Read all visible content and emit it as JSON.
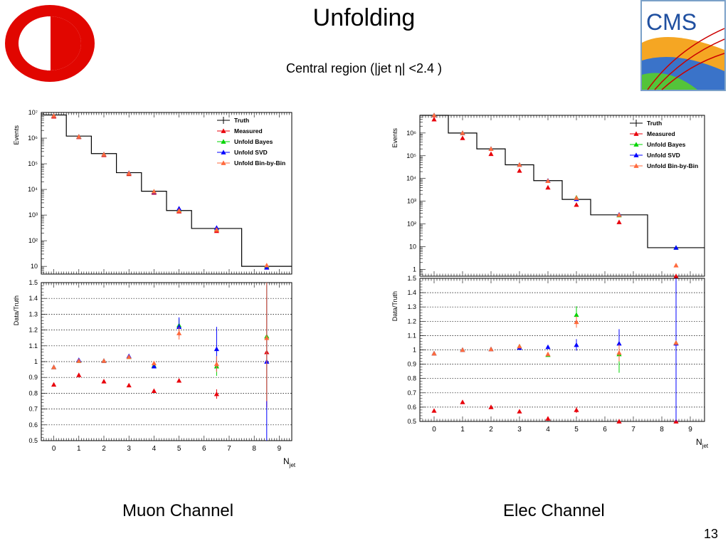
{
  "slide": {
    "title": "Unfolding",
    "subtitle": "Central region (|jet η| <2.4 )",
    "caption_left": "Muon Channel",
    "caption_right": "Elec Channel",
    "page_number": "13"
  },
  "logos": {
    "left": "university-logo",
    "right": "CMS"
  },
  "colors": {
    "Truth": "#000000",
    "Measured": "#e8000b",
    "Unfold Bayes": "#00d400",
    "Unfold SVD": "#0000ff",
    "Unfold Bin-by-Bin": "#ff6a3d"
  },
  "chart_data": [
    {
      "type": "scatter",
      "panel": "muon-top",
      "ylabel": "Events",
      "y_scale": "log",
      "ylim": [
        5,
        10000000
      ],
      "xlim": [
        -0.5,
        9.5
      ],
      "grid": false,
      "legend": "top-right",
      "y_tick_labels": [
        "10⁷",
        "10⁶",
        "10⁵",
        "10⁴",
        "10³",
        "10²",
        "10"
      ],
      "truth_bins": [
        [
          -0.5,
          0.5,
          8000000
        ],
        [
          0.5,
          1.5,
          1200000
        ],
        [
          1.5,
          2.5,
          250000
        ],
        [
          2.5,
          3.5,
          45000
        ],
        [
          3.5,
          4.5,
          8500
        ],
        [
          4.5,
          5.5,
          1500
        ],
        [
          5.5,
          7.5,
          300
        ],
        [
          7.5,
          9.5,
          10
        ]
      ],
      "series": [
        {
          "name": "Truth",
          "x": [],
          "y": []
        },
        {
          "name": "Measured",
          "x": [
            0,
            1,
            2,
            3,
            4,
            5,
            6.5,
            8.5
          ],
          "y": [
            7000000,
            1100000,
            220000,
            40000,
            7500,
            1400,
            240,
            9
          ]
        },
        {
          "name": "Unfold Bayes",
          "x": [
            0,
            1,
            2,
            3,
            4,
            5,
            6.5,
            8.5
          ],
          "y": [
            7500000,
            1150000,
            235000,
            43000,
            8200,
            1600,
            280,
            10
          ]
        },
        {
          "name": "Unfold SVD",
          "x": [
            0,
            1,
            2,
            3,
            4,
            5,
            6.5,
            8.5
          ],
          "y": [
            7500000,
            1150000,
            235000,
            44000,
            8000,
            1800,
            320,
            9
          ]
        },
        {
          "name": "Unfold Bin-by-Bin",
          "x": [
            0,
            1,
            2,
            3,
            4,
            5,
            6.5,
            8.5
          ],
          "y": [
            7500000,
            1150000,
            235000,
            43000,
            8300,
            1500,
            270,
            11
          ]
        }
      ]
    },
    {
      "type": "scatter",
      "panel": "muon-ratio",
      "ylabel": "Data/Truth",
      "xlabel": "N",
      "xlabel_sub": "jet",
      "ylim": [
        0.5,
        1.5
      ],
      "xlim": [
        -0.5,
        9.5
      ],
      "grid": true,
      "x_ticks": [
        0,
        1,
        2,
        3,
        4,
        5,
        6,
        7,
        8,
        9
      ],
      "y_ticks": [
        0.5,
        0.6,
        0.7,
        0.8,
        0.9,
        1,
        1.1,
        1.2,
        1.3,
        1.4,
        1.5
      ],
      "series": [
        {
          "name": "Measured",
          "x": [
            0,
            1,
            2,
            3,
            4,
            5,
            6.5,
            8.5
          ],
          "y": [
            0.855,
            0.915,
            0.875,
            0.85,
            0.815,
            0.88,
            0.795,
            1.06
          ],
          "err": [
            0,
            0,
            0,
            0,
            0,
            0,
            0.03,
            0.35
          ]
        },
        {
          "name": "Unfold Bayes",
          "x": [
            0,
            1,
            2,
            3,
            4,
            5,
            6.5,
            8.5
          ],
          "y": [
            0.965,
            1.005,
            1.005,
            1.03,
            0.975,
            1.23,
            0.97,
            1.16
          ],
          "err": [
            0,
            0,
            0,
            0,
            0,
            0.04,
            0.06,
            0.4
          ]
        },
        {
          "name": "Unfold SVD",
          "x": [
            0,
            1,
            2,
            3,
            4,
            5,
            6.5,
            8.5
          ],
          "y": [
            0.965,
            1.01,
            1.005,
            1.035,
            0.97,
            1.22,
            1.08,
            1.0
          ],
          "err": [
            0,
            0,
            0,
            0,
            0.01,
            0.06,
            0.14,
            0.6
          ]
        },
        {
          "name": "Unfold Bin-by-Bin",
          "x": [
            0,
            1,
            2,
            3,
            4,
            5,
            6.5,
            8.5
          ],
          "y": [
            0.965,
            1.005,
            1.005,
            1.03,
            0.99,
            1.18,
            0.985,
            1.15
          ],
          "err": [
            0,
            0,
            0,
            0,
            0,
            0.04,
            0.05,
            0.4
          ]
        }
      ]
    },
    {
      "type": "scatter",
      "panel": "elec-top",
      "ylabel": "Events",
      "y_scale": "log",
      "ylim": [
        0.5,
        6000000
      ],
      "xlim": [
        -0.5,
        9.5
      ],
      "grid": false,
      "legend": "top-right",
      "y_tick_labels": [
        "10⁶",
        "10⁵",
        "10⁴",
        "10³",
        "10²",
        "10",
        "1"
      ],
      "truth_bins": [
        [
          -0.5,
          0.5,
          6000000
        ],
        [
          0.5,
          1.5,
          1000000
        ],
        [
          1.5,
          2.5,
          200000
        ],
        [
          2.5,
          3.5,
          40000
        ],
        [
          3.5,
          4.5,
          8000
        ],
        [
          4.5,
          5.5,
          1200
        ],
        [
          5.5,
          7.5,
          250
        ],
        [
          7.5,
          9.5,
          9
        ]
      ],
      "series": [
        {
          "name": "Truth",
          "x": [],
          "y": []
        },
        {
          "name": "Measured",
          "x": [
            0,
            1,
            2,
            3,
            4,
            5,
            6.5,
            8.5
          ],
          "y": [
            4000000,
            600000,
            120000,
            22000,
            4000,
            700,
            120,
            0.5
          ]
        },
        {
          "name": "Unfold Bayes",
          "x": [
            0,
            1,
            2,
            3,
            4,
            5,
            6.5,
            8.5
          ],
          "y": [
            6000000,
            1000000,
            200000,
            40000,
            7800,
            1450,
            240,
            9
          ]
        },
        {
          "name": "Unfold SVD",
          "x": [
            0,
            1,
            2,
            3,
            4,
            5,
            6.5,
            8.5
          ],
          "y": [
            6000000,
            1000000,
            200000,
            40000,
            8000,
            1250,
            260,
            9
          ]
        },
        {
          "name": "Unfold Bin-by-Bin",
          "x": [
            0,
            1,
            2,
            3,
            4,
            5,
            6.5,
            8.5
          ],
          "y": [
            6000000,
            1000000,
            200000,
            40000,
            7800,
            1400,
            250,
            1.5
          ]
        }
      ]
    },
    {
      "type": "scatter",
      "panel": "elec-ratio",
      "ylabel": "Data/Truth",
      "xlabel": "N",
      "xlabel_sub": "jet",
      "ylim": [
        0.5,
        1.5
      ],
      "xlim": [
        -0.5,
        9.5
      ],
      "grid": true,
      "x_ticks": [
        0,
        1,
        2,
        3,
        4,
        5,
        6,
        7,
        8,
        9
      ],
      "y_ticks": [
        0.5,
        0.6,
        0.7,
        0.8,
        0.9,
        1,
        1.1,
        1.2,
        1.3,
        1.4,
        1.5
      ],
      "series": [
        {
          "name": "Measured",
          "x": [
            0,
            1,
            2,
            3,
            4,
            5,
            6.5,
            8.5
          ],
          "y": [
            0.575,
            0.635,
            0.6,
            0.57,
            0.52,
            0.58,
            0.5,
            0.5
          ],
          "err": [
            0,
            0,
            0,
            0,
            0,
            0.02,
            0,
            0
          ]
        },
        {
          "name": "Unfold Bayes",
          "x": [
            0,
            1,
            2,
            3,
            4,
            5,
            6.5,
            8.5
          ],
          "y": [
            0.975,
            1.0,
            1.005,
            1.025,
            0.965,
            1.245,
            0.97,
            1.05
          ],
          "err": [
            0,
            0,
            0,
            0,
            0,
            0.06,
            0.13,
            0
          ]
        },
        {
          "name": "Unfold SVD",
          "x": [
            0,
            1,
            2,
            3,
            4,
            5,
            6.5,
            8.5
          ],
          "y": [
            0.975,
            1.0,
            1.005,
            1.015,
            1.02,
            1.035,
            1.045,
            1.045
          ],
          "err": [
            0,
            0,
            0,
            0,
            0,
            0.04,
            0.1,
            0.6
          ]
        },
        {
          "name": "Unfold Bin-by-Bin",
          "x": [
            0,
            1,
            2,
            3,
            4,
            5,
            6.5,
            8.5
          ],
          "y": [
            0.975,
            1.0,
            1.005,
            1.025,
            0.97,
            1.195,
            0.98,
            1.05
          ],
          "err": [
            0,
            0,
            0,
            0,
            0,
            0.04,
            0.06,
            0
          ]
        }
      ]
    }
  ]
}
